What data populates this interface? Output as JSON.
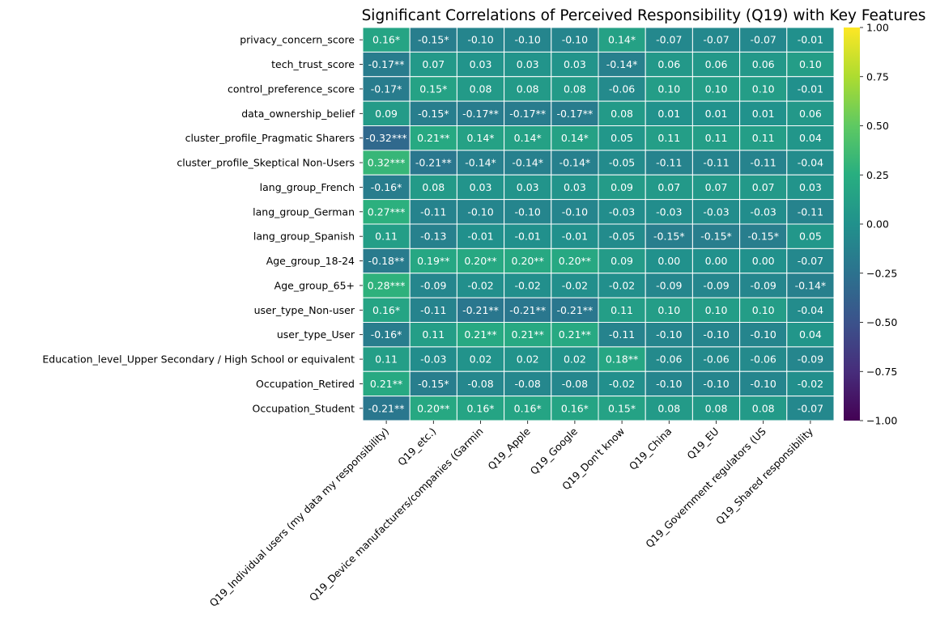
{
  "chart_data": {
    "type": "heatmap",
    "title": "Significant Correlations of Perceived Responsibility (Q19) with Key Features",
    "xlabel": "",
    "ylabel": "",
    "colormap": "viridis",
    "value_range": [
      -1.0,
      1.0
    ],
    "grid": false,
    "legend": "colorbar-right",
    "rows": [
      "privacy_concern_score",
      "tech_trust_score",
      "control_preference_score",
      "data_ownership_belief",
      "cluster_profile_Pragmatic Sharers",
      "cluster_profile_Skeptical Non-Users",
      "lang_group_French",
      "lang_group_German",
      "lang_group_Spanish",
      "Age_group_18-24",
      "Age_group_65+",
      "user_type_Non-user",
      "user_type_User",
      "Education_level_Upper Secondary / High School or equivalent",
      "Occupation_Retired",
      "Occupation_Student"
    ],
    "columns": [
      "Q19_Individual users (my data my responsibility)",
      "Q19_etc.)",
      "Q19_Device manufacturers/companies (Garmin",
      "Q19_Apple",
      "Q19_Google",
      "Q19_Don't know",
      "Q19_China",
      "Q19_EU",
      "Q19_Government regulators (US",
      "Q19_Shared responsibility"
    ],
    "values": [
      [
        0.16,
        -0.15,
        -0.1,
        -0.1,
        -0.1,
        0.14,
        -0.07,
        -0.07,
        -0.07,
        -0.01
      ],
      [
        -0.17,
        0.07,
        0.03,
        0.03,
        0.03,
        -0.14,
        0.06,
        0.06,
        0.06,
        0.1
      ],
      [
        -0.17,
        0.15,
        0.08,
        0.08,
        0.08,
        -0.06,
        0.1,
        0.1,
        0.1,
        -0.01
      ],
      [
        0.09,
        -0.15,
        -0.17,
        -0.17,
        -0.17,
        0.08,
        0.01,
        0.01,
        0.01,
        0.06
      ],
      [
        -0.32,
        0.21,
        0.14,
        0.14,
        0.14,
        0.05,
        0.11,
        0.11,
        0.11,
        0.04
      ],
      [
        0.32,
        -0.21,
        -0.14,
        -0.14,
        -0.14,
        -0.05,
        -0.11,
        -0.11,
        -0.11,
        -0.04
      ],
      [
        -0.16,
        0.08,
        0.03,
        0.03,
        0.03,
        0.09,
        0.07,
        0.07,
        0.07,
        0.03
      ],
      [
        0.27,
        -0.11,
        -0.1,
        -0.1,
        -0.1,
        -0.03,
        -0.03,
        -0.03,
        -0.03,
        -0.11
      ],
      [
        0.11,
        -0.13,
        -0.01,
        -0.01,
        -0.01,
        -0.05,
        -0.15,
        -0.15,
        -0.15,
        0.05
      ],
      [
        -0.18,
        0.19,
        0.2,
        0.2,
        0.2,
        0.09,
        0.0,
        0.0,
        0.0,
        -0.07
      ],
      [
        0.28,
        -0.09,
        -0.02,
        -0.02,
        -0.02,
        -0.02,
        -0.09,
        -0.09,
        -0.09,
        -0.14
      ],
      [
        0.16,
        -0.11,
        -0.21,
        -0.21,
        -0.21,
        0.11,
        0.1,
        0.1,
        0.1,
        -0.04
      ],
      [
        -0.16,
        0.11,
        0.21,
        0.21,
        0.21,
        -0.11,
        -0.1,
        -0.1,
        -0.1,
        0.04
      ],
      [
        0.11,
        -0.03,
        0.02,
        0.02,
        0.02,
        0.18,
        -0.06,
        -0.06,
        -0.06,
        -0.09
      ],
      [
        0.21,
        -0.15,
        -0.08,
        -0.08,
        -0.08,
        -0.02,
        -0.1,
        -0.1,
        -0.1,
        -0.02
      ],
      [
        -0.21,
        0.2,
        0.16,
        0.16,
        0.16,
        0.15,
        0.08,
        0.08,
        0.08,
        -0.07
      ]
    ],
    "annotations": [
      [
        "0.16*",
        "-0.15*",
        "-0.10",
        "-0.10",
        "-0.10",
        "0.14*",
        "-0.07",
        "-0.07",
        "-0.07",
        "-0.01"
      ],
      [
        "-0.17**",
        "0.07",
        "0.03",
        "0.03",
        "0.03",
        "-0.14*",
        "0.06",
        "0.06",
        "0.06",
        "0.10"
      ],
      [
        "-0.17*",
        "0.15*",
        "0.08",
        "0.08",
        "0.08",
        "-0.06",
        "0.10",
        "0.10",
        "0.10",
        "-0.01"
      ],
      [
        "0.09",
        "-0.15*",
        "-0.17**",
        "-0.17**",
        "-0.17**",
        "0.08",
        "0.01",
        "0.01",
        "0.01",
        "0.06"
      ],
      [
        "-0.32***",
        "0.21**",
        "0.14*",
        "0.14*",
        "0.14*",
        "0.05",
        "0.11",
        "0.11",
        "0.11",
        "0.04"
      ],
      [
        "0.32***",
        "-0.21**",
        "-0.14*",
        "-0.14*",
        "-0.14*",
        "-0.05",
        "-0.11",
        "-0.11",
        "-0.11",
        "-0.04"
      ],
      [
        "-0.16*",
        "0.08",
        "0.03",
        "0.03",
        "0.03",
        "0.09",
        "0.07",
        "0.07",
        "0.07",
        "0.03"
      ],
      [
        "0.27***",
        "-0.11",
        "-0.10",
        "-0.10",
        "-0.10",
        "-0.03",
        "-0.03",
        "-0.03",
        "-0.03",
        "-0.11"
      ],
      [
        "0.11",
        "-0.13",
        "-0.01",
        "-0.01",
        "-0.01",
        "-0.05",
        "-0.15*",
        "-0.15*",
        "-0.15*",
        "0.05"
      ],
      [
        "-0.18**",
        "0.19**",
        "0.20**",
        "0.20**",
        "0.20**",
        "0.09",
        "0.00",
        "0.00",
        "0.00",
        "-0.07"
      ],
      [
        "0.28***",
        "-0.09",
        "-0.02",
        "-0.02",
        "-0.02",
        "-0.02",
        "-0.09",
        "-0.09",
        "-0.09",
        "-0.14*"
      ],
      [
        "0.16*",
        "-0.11",
        "-0.21**",
        "-0.21**",
        "-0.21**",
        "0.11",
        "0.10",
        "0.10",
        "0.10",
        "-0.04"
      ],
      [
        "-0.16*",
        "0.11",
        "0.21**",
        "0.21**",
        "0.21**",
        "-0.11",
        "-0.10",
        "-0.10",
        "-0.10",
        "0.04"
      ],
      [
        "0.11",
        "-0.03",
        "0.02",
        "0.02",
        "0.02",
        "0.18**",
        "-0.06",
        "-0.06",
        "-0.06",
        "-0.09"
      ],
      [
        "0.21**",
        "-0.15*",
        "-0.08",
        "-0.08",
        "-0.08",
        "-0.02",
        "-0.10",
        "-0.10",
        "-0.10",
        "-0.02"
      ],
      [
        "-0.21**",
        "0.20**",
        "0.16*",
        "0.16*",
        "0.16*",
        "0.15*",
        "0.08",
        "0.08",
        "0.08",
        "-0.07"
      ]
    ],
    "colorbar": {
      "ticks": [
        1.0,
        0.75,
        0.5,
        0.25,
        0.0,
        -0.25,
        -0.5,
        -0.75,
        -1.0
      ],
      "tick_labels": [
        "1.00",
        "0.75",
        "0.50",
        "0.25",
        "0.00",
        "−0.25",
        "−0.50",
        "−0.75",
        "−1.00"
      ]
    }
  }
}
